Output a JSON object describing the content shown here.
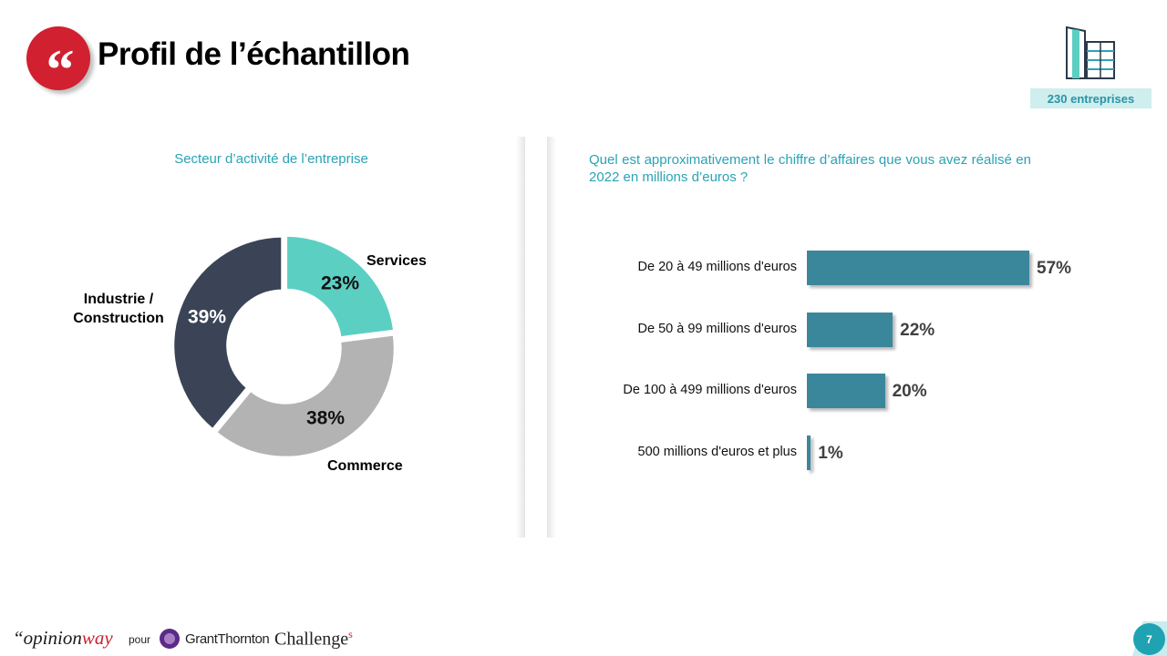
{
  "header": {
    "quote_glyph": "“",
    "title": "Profil de l’échantillon",
    "sample_badge": "230 entreprises"
  },
  "left_panel": {
    "question": "Secteur d’activité de l’entreprise"
  },
  "right_panel": {
    "question": "Quel est approximativement le chiffre d’affaires que vous avez réalisé en 2022 en millions d’euros ?"
  },
  "chart_data": [
    {
      "type": "pie",
      "title": "Secteur d’activité de l’entreprise",
      "donut": true,
      "slices": [
        {
          "label": "Services",
          "value": 23,
          "display": "23%",
          "color": "#5ccfc3"
        },
        {
          "label": "Commerce",
          "value": 38,
          "display": "38%",
          "color": "#b3b3b3"
        },
        {
          "label": "Industrie / Construction",
          "value": 39,
          "display": "39%",
          "color": "#3a4456"
        }
      ]
    },
    {
      "type": "bar",
      "orientation": "horizontal",
      "title": "Quel est approximativement le chiffre d’affaires que vous avez réalisé en 2022 en millions d’euros ?",
      "categories": [
        "De 20 à 49 millions d'euros",
        "De 50 à 99 millions d'euros",
        "De 100 à 499 millions d'euros",
        "500 millions d'euros et plus"
      ],
      "values": [
        57,
        22,
        20,
        1
      ],
      "display": [
        "57%",
        "22%",
        "20%",
        "1%"
      ],
      "xlim": [
        0,
        57
      ],
      "color": "#3a879b"
    }
  ],
  "footer": {
    "brand_opinion": "“opinion",
    "brand_way": "way",
    "pour": "pour",
    "grant_thornton": "GrantThornton",
    "challenges": "Challenge",
    "challenges_s": "s",
    "page_number": "7"
  }
}
